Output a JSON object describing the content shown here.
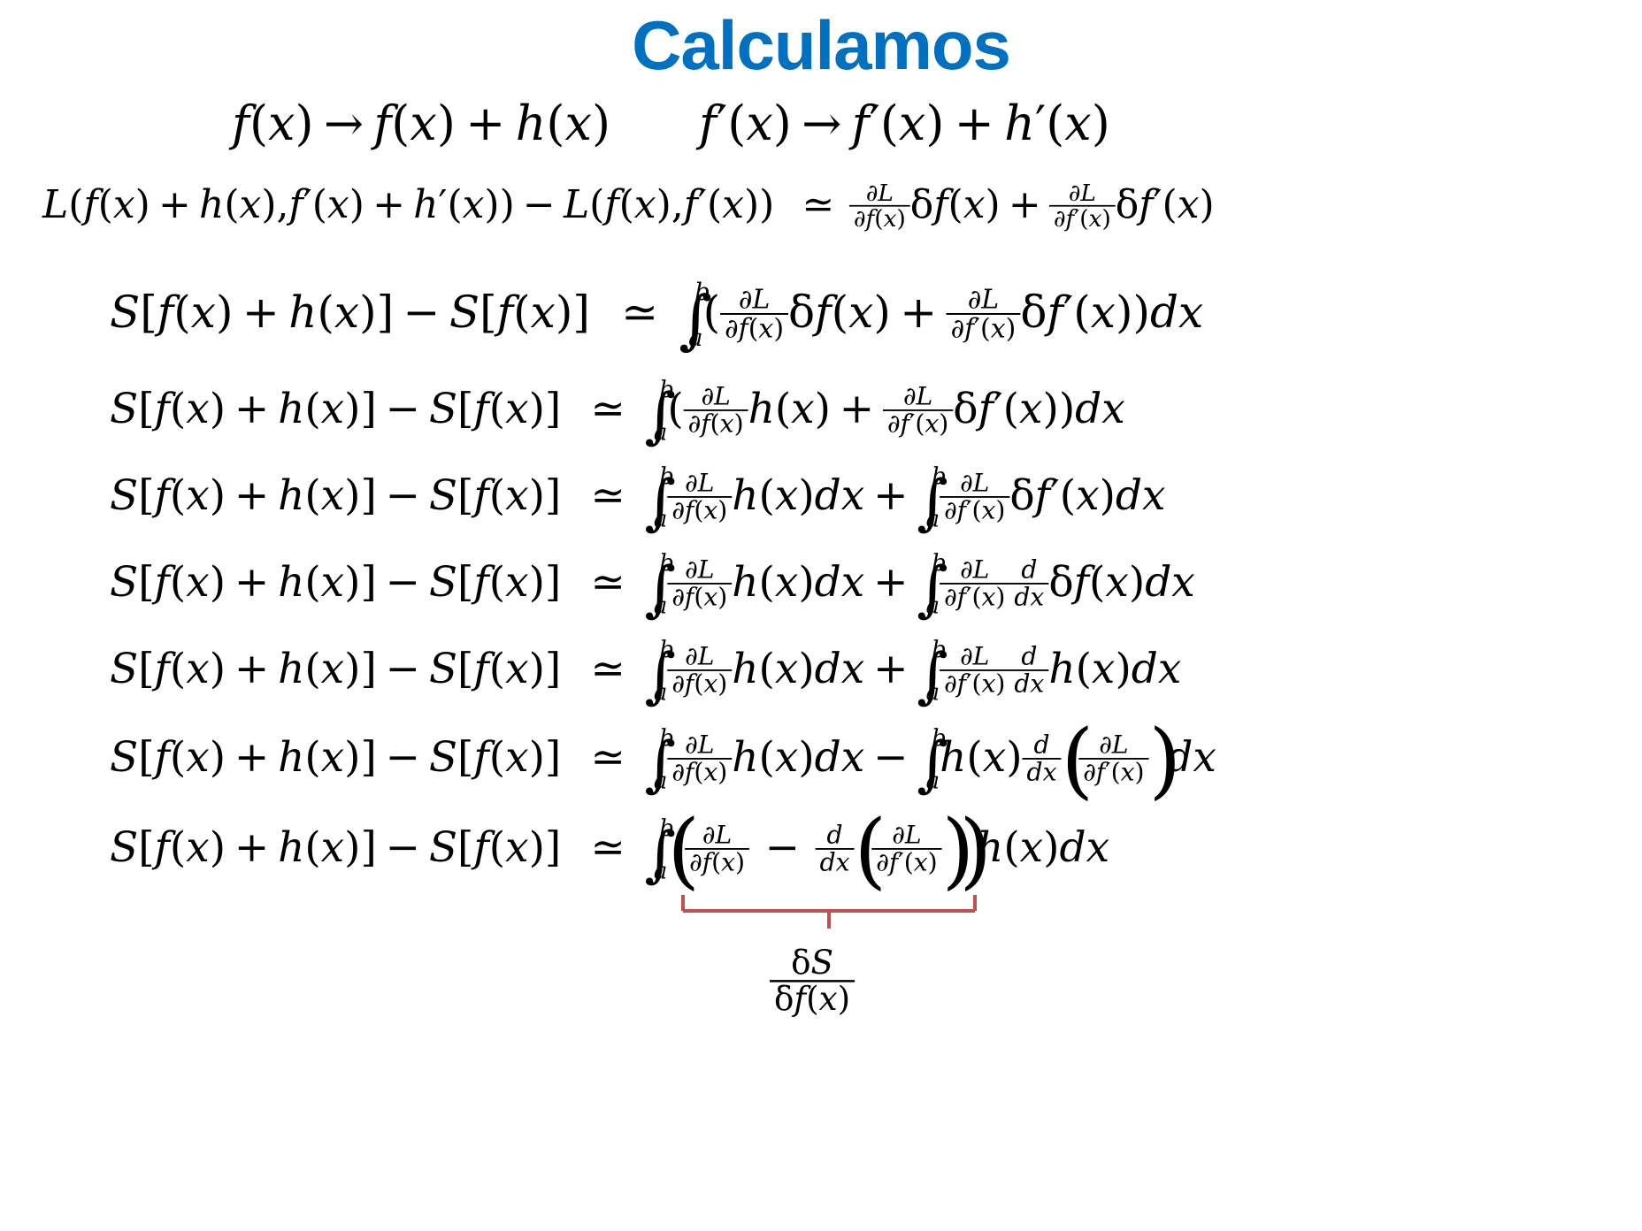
{
  "slide": {
    "title": "Calculamos",
    "title_color": "#0070C0",
    "brace_color": "#C0504D"
  },
  "text": {
    "f": "f",
    "h": "h",
    "L": "L",
    "S": "S",
    "x": "x",
    "a": "a",
    "b": "b",
    "d": "d",
    "dx": "dx",
    "arrow": "→",
    "plus": "+",
    "minus": "−",
    "approx": "≃",
    "comma": ",",
    "prime": "′",
    "delta": "δ",
    "partial": "∂",
    "integral": "∫",
    "lparen": "(",
    "rparen": ")",
    "lbracket": "[",
    "rbracket": "]"
  }
}
